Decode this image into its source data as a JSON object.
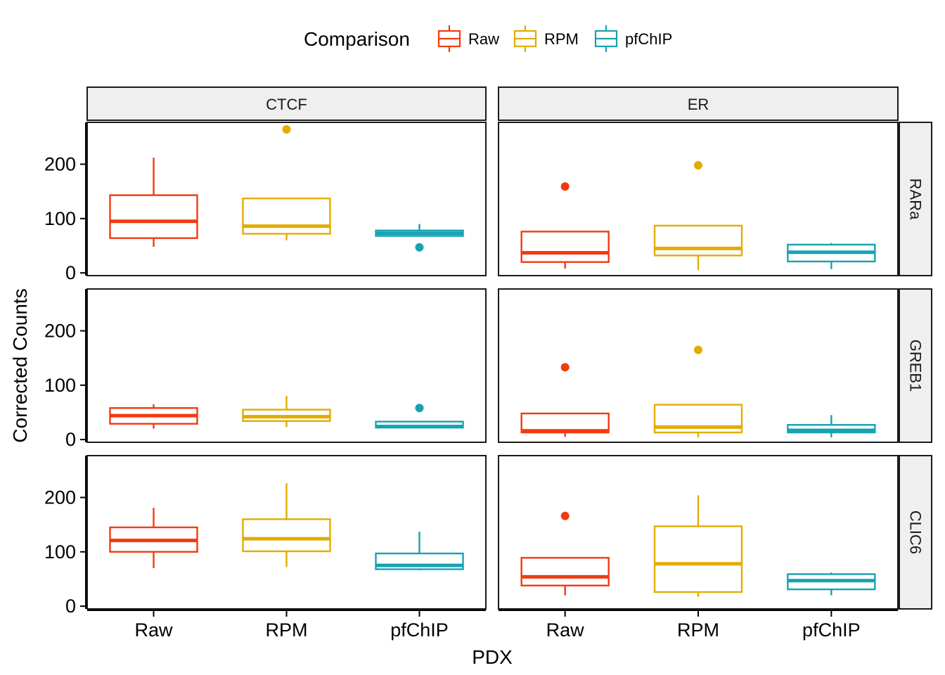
{
  "chart_data": {
    "type": "boxplot",
    "xlabel": "PDX",
    "ylabel": "Corrected Counts",
    "legend": {
      "title": "Comparison",
      "placement": "top",
      "entries": [
        "Raw",
        "RPM",
        "pfChIP"
      ]
    },
    "colors": {
      "Raw": "#F23A0E",
      "RPM": "#E2AC00",
      "pfChIP": "#17A2B1"
    },
    "categories": [
      "Raw",
      "RPM",
      "pfChIP"
    ],
    "ylim": [
      -5,
      277
    ],
    "yticks": [
      0,
      100,
      200
    ],
    "grid": false,
    "facet_cols": [
      "CTCF",
      "ER"
    ],
    "facet_rows": [
      "RARa",
      "GREB1",
      "CLIC6"
    ],
    "panels": [
      {
        "col": "CTCF",
        "row": "RARa",
        "boxes": [
          {
            "category": "Raw",
            "lower_whisker": 48,
            "q1": 64,
            "median": 95,
            "q3": 143,
            "upper_whisker": 212,
            "outliers": []
          },
          {
            "category": "RPM",
            "lower_whisker": 60,
            "q1": 72,
            "median": 86,
            "q3": 137,
            "upper_whisker": 137,
            "outliers": [
              264
            ]
          },
          {
            "category": "pfChIP",
            "lower_whisker": 68,
            "q1": 68,
            "median": 73,
            "q3": 78,
            "upper_whisker": 90,
            "outliers": [
              47
            ]
          }
        ]
      },
      {
        "col": "ER",
        "row": "RARa",
        "boxes": [
          {
            "category": "Raw",
            "lower_whisker": 8,
            "q1": 20,
            "median": 37,
            "q3": 76,
            "upper_whisker": 76,
            "outliers": [
              159
            ]
          },
          {
            "category": "RPM",
            "lower_whisker": 5,
            "q1": 32,
            "median": 45,
            "q3": 87,
            "upper_whisker": 87,
            "outliers": [
              198
            ]
          },
          {
            "category": "pfChIP",
            "lower_whisker": 7,
            "q1": 21,
            "median": 38,
            "q3": 52,
            "upper_whisker": 55,
            "outliers": []
          }
        ]
      },
      {
        "col": "CTCF",
        "row": "GREB1",
        "boxes": [
          {
            "category": "Raw",
            "lower_whisker": 20,
            "q1": 29,
            "median": 44,
            "q3": 58,
            "upper_whisker": 65,
            "outliers": []
          },
          {
            "category": "RPM",
            "lower_whisker": 23,
            "q1": 34,
            "median": 42,
            "q3": 55,
            "upper_whisker": 80,
            "outliers": []
          },
          {
            "category": "pfChIP",
            "lower_whisker": 22,
            "q1": 22,
            "median": 24,
            "q3": 33,
            "upper_whisker": 33,
            "outliers": [
              58
            ]
          }
        ]
      },
      {
        "col": "ER",
        "row": "GREB1",
        "boxes": [
          {
            "category": "Raw",
            "lower_whisker": 5,
            "q1": 13,
            "median": 16,
            "q3": 48,
            "upper_whisker": 48,
            "outliers": [
              133
            ]
          },
          {
            "category": "RPM",
            "lower_whisker": 4,
            "q1": 13,
            "median": 23,
            "q3": 64,
            "upper_whisker": 64,
            "outliers": [
              165
            ]
          },
          {
            "category": "pfChIP",
            "lower_whisker": 4,
            "q1": 13,
            "median": 17,
            "q3": 27,
            "upper_whisker": 45,
            "outliers": []
          }
        ]
      },
      {
        "col": "CTCF",
        "row": "CLIC6",
        "boxes": [
          {
            "category": "Raw",
            "lower_whisker": 70,
            "q1": 100,
            "median": 121,
            "q3": 145,
            "upper_whisker": 181,
            "outliers": []
          },
          {
            "category": "RPM",
            "lower_whisker": 72,
            "q1": 101,
            "median": 124,
            "q3": 160,
            "upper_whisker": 226,
            "outliers": []
          },
          {
            "category": "pfChIP",
            "lower_whisker": 66,
            "q1": 68,
            "median": 75,
            "q3": 97,
            "upper_whisker": 137,
            "outliers": []
          }
        ]
      },
      {
        "col": "ER",
        "row": "CLIC6",
        "boxes": [
          {
            "category": "Raw",
            "lower_whisker": 20,
            "q1": 38,
            "median": 54,
            "q3": 89,
            "upper_whisker": 89,
            "outliers": [
              166
            ]
          },
          {
            "category": "RPM",
            "lower_whisker": 17,
            "q1": 26,
            "median": 78,
            "q3": 147,
            "upper_whisker": 204,
            "outliers": []
          },
          {
            "category": "pfChIP",
            "lower_whisker": 20,
            "q1": 31,
            "median": 47,
            "q3": 59,
            "upper_whisker": 62,
            "outliers": []
          }
        ]
      }
    ]
  }
}
